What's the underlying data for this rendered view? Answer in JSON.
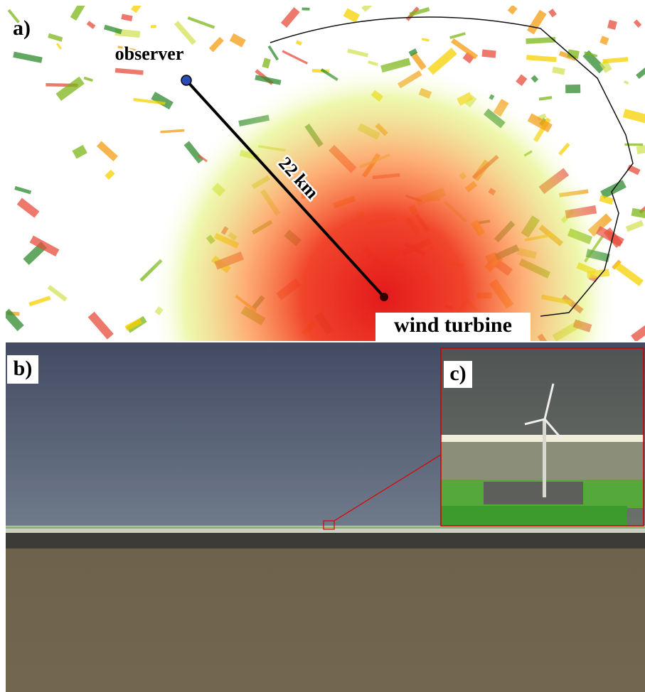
{
  "panel_a": {
    "label": "a)",
    "observer": "observer",
    "distance": "22 km",
    "target": "wind turbine"
  },
  "panel_b": {
    "label": "b)"
  },
  "panel_c": {
    "label": "c)"
  }
}
